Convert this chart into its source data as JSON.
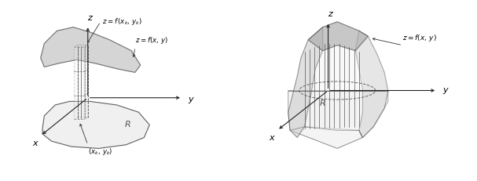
{
  "fig_width": 6.07,
  "fig_height": 2.31,
  "dpi": 100,
  "bg": "#ffffff",
  "gray_dark": "#aaaaaa",
  "gray_mid": "#c8c8c8",
  "gray_light": "#e0e0e0",
  "gray_lightest": "#eeeeee",
  "line_dark": "#333333",
  "line_med": "#555555",
  "label_z": "z",
  "label_y": "y",
  "label_x": "x",
  "label_R": "R"
}
